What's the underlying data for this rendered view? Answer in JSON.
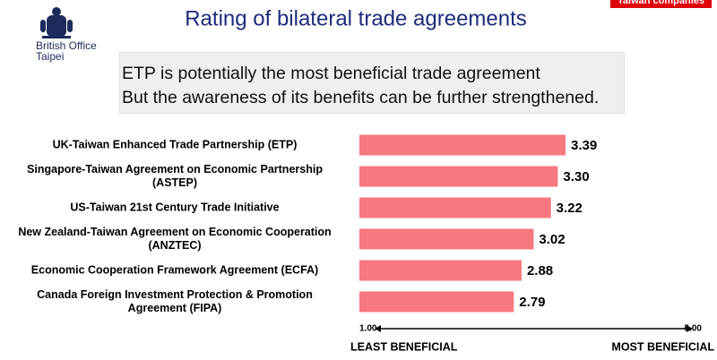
{
  "header": {
    "brand": "British Office\nTaipei",
    "banner": "Taiwan companies"
  },
  "callout": [
    "ETP is potentially the most beneficial trade agreement",
    "But the awareness of its benefits can be further strengthened."
  ],
  "chart_data": {
    "type": "hbar",
    "title": "Rating of bilateral trade agreements",
    "categories": [
      "UK-Taiwan Enhanced Trade Partnership (ETP)",
      "Singapore-Taiwan Agreement on Economic Partnership\n(ASTEP)",
      "US-Taiwan 21st Century Trade Initiative",
      "New Zealand-Taiwan Agreement on Economic Cooperation\n(ANZTEC)",
      "Economic Cooperation Framework Agreement (ECFA)",
      "Canada Foreign Investment Protection & Promotion\nAgreement (FIPA)"
    ],
    "values": [
      3.39,
      3.3,
      3.22,
      3.02,
      2.88,
      2.79
    ],
    "value_labels": [
      "3.39",
      "3.30",
      "3.22",
      "3.02",
      "2.88",
      "2.79"
    ],
    "color": "#f7787f",
    "xlim": [
      1,
      5
    ],
    "xticks": [
      {
        "value": 1,
        "label": "1.00"
      },
      {
        "value": 5,
        "label": "5.00"
      }
    ],
    "axis_annotations": {
      "left": "LEAST BENEFICIAL",
      "right": "MOST BENEFICIAL"
    }
  }
}
